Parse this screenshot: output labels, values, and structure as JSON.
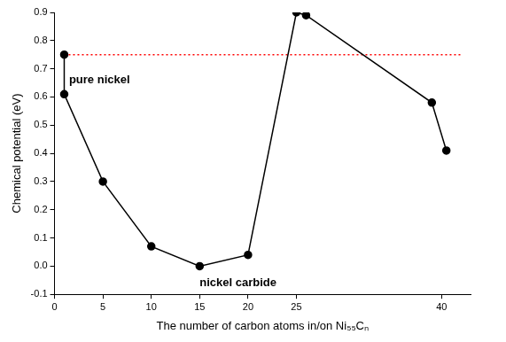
{
  "chart_data": {
    "type": "line",
    "x_label": "The number of carbon atoms in/on Ni₅₅Cₙ",
    "y_label": "Chemical potential (eV)",
    "x": [
      1,
      1,
      5,
      10,
      15,
      20,
      25,
      26,
      39,
      40.5
    ],
    "values": [
      0.75,
      0.61,
      0.3,
      0.07,
      0.0,
      0.04,
      0.9,
      0.89,
      0.58,
      0.41
    ],
    "color": "#000000",
    "marker": "circle",
    "xlim": [
      0,
      43
    ],
    "xticks": [
      0,
      5,
      10,
      15,
      20,
      25,
      40
    ],
    "ylim": [
      -0.1,
      0.9
    ],
    "yticks": [
      -0.1,
      {
        "value": 0,
        "label": "0.0"
      },
      0.1,
      0.2,
      0.3,
      0.4,
      0.5,
      0.6,
      0.7,
      0.8,
      0.9
    ],
    "reference_line": {
      "y": 0.75,
      "x": [
        1,
        42
      ],
      "color": "#ff0000",
      "line_style": "dotted"
    },
    "annotations": [
      {
        "text": "pure nickel",
        "x": 1.5,
        "y": 0.66
      },
      {
        "text": "nickel carbide",
        "x": 15,
        "y": -0.06
      }
    ],
    "grid": false
  }
}
